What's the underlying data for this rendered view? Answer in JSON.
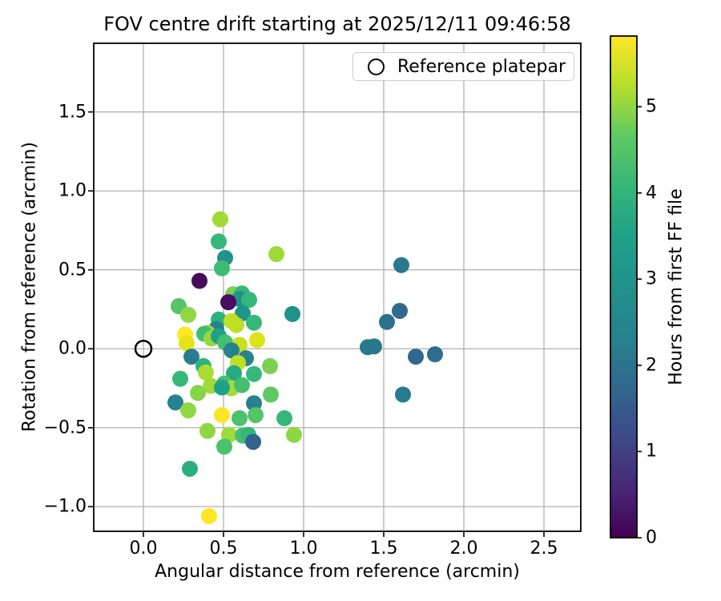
{
  "figure": {
    "background": "#ffffff",
    "grid_color": "#b0b0b0",
    "spine_color": "#000000",
    "text_color": "#000000"
  },
  "chart_data": {
    "type": "scatter",
    "title": "FOV centre drift starting at 2025/12/11 09:46:58",
    "xlabel": "Angular distance from reference (arcmin)",
    "ylabel": "Rotation from reference (arcmin)",
    "xlim": [
      -0.31,
      2.73
    ],
    "ylim": [
      -1.156,
      1.935
    ],
    "grid": true,
    "xticks": {
      "values": [
        0.0,
        0.5,
        1.0,
        1.5,
        2.0,
        2.5
      ],
      "labels": [
        "0.0",
        "0.5",
        "1.0",
        "1.5",
        "2.0",
        "2.5"
      ]
    },
    "yticks": {
      "values": [
        -1.0,
        -0.5,
        0.0,
        0.5,
        1.0,
        1.5
      ],
      "labels": [
        "−1.0",
        "−0.5",
        "0.0",
        "0.5",
        "1.0",
        "1.5"
      ]
    },
    "legend": {
      "position": "upper right",
      "entries": [
        {
          "label": "Reference platepar",
          "marker": "open-circle"
        }
      ]
    },
    "reference_point": {
      "x": 0.0,
      "y": 0.0,
      "marker": "open-circle",
      "edge_color": "#000000"
    },
    "colorbar": {
      "label": "Hours from first FF file",
      "vmin": 0,
      "vmax": 5.82,
      "ticks": {
        "values": [
          0,
          1,
          2,
          3,
          4,
          5
        ],
        "labels": [
          "0",
          "1",
          "2",
          "3",
          "4",
          "5"
        ]
      },
      "colormap": "viridis",
      "gradient_stops": [
        "#440154",
        "#482878",
        "#3e4989",
        "#31688e",
        "#26828e",
        "#21918c",
        "#1fa088",
        "#35b779",
        "#5ec962",
        "#b5de2b",
        "#fde725"
      ]
    },
    "points": [
      {
        "x": 0.48,
        "y": 0.82,
        "hours": 5.0,
        "color": "#a0da39"
      },
      {
        "x": 0.47,
        "y": 0.68,
        "hours": 4.0,
        "color": "#35b779"
      },
      {
        "x": 0.51,
        "y": 0.575,
        "hours": 3.0,
        "color": "#21918c"
      },
      {
        "x": 0.49,
        "y": 0.51,
        "hours": 4.1,
        "color": "#3dbc74"
      },
      {
        "x": 0.83,
        "y": 0.6,
        "hours": 5.0,
        "color": "#a0da39"
      },
      {
        "x": 0.35,
        "y": 0.43,
        "hours": 0.1,
        "color": "#450c59"
      },
      {
        "x": 0.56,
        "y": 0.345,
        "hours": 4.6,
        "color": "#77d153"
      },
      {
        "x": 0.615,
        "y": 0.35,
        "hours": 4.0,
        "color": "#35b779"
      },
      {
        "x": 0.6,
        "y": 0.315,
        "hours": 3.1,
        "color": "#21918c"
      },
      {
        "x": 0.66,
        "y": 0.31,
        "hours": 4.0,
        "color": "#35b779"
      },
      {
        "x": 0.53,
        "y": 0.295,
        "hours": 0.2,
        "color": "#470d60"
      },
      {
        "x": 0.22,
        "y": 0.27,
        "hours": 4.3,
        "color": "#54c568"
      },
      {
        "x": 0.28,
        "y": 0.215,
        "hours": 4.8,
        "color": "#90d743"
      },
      {
        "x": 0.62,
        "y": 0.225,
        "hours": 3.1,
        "color": "#1f958b"
      },
      {
        "x": 0.93,
        "y": 0.22,
        "hours": 3.1,
        "color": "#21918c"
      },
      {
        "x": 0.47,
        "y": 0.185,
        "hours": 3.8,
        "color": "#2db27d"
      },
      {
        "x": 0.55,
        "y": 0.175,
        "hours": 5.2,
        "color": "#c0df25"
      },
      {
        "x": 0.58,
        "y": 0.15,
        "hours": 5.1,
        "color": "#bddf26"
      },
      {
        "x": 0.69,
        "y": 0.165,
        "hours": 4.0,
        "color": "#35b779"
      },
      {
        "x": 0.455,
        "y": 0.125,
        "hours": 3.0,
        "color": "#26828e"
      },
      {
        "x": 0.4,
        "y": 0.1,
        "hours": 4.9,
        "color": "#98d83e"
      },
      {
        "x": 0.38,
        "y": 0.095,
        "hours": 4.1,
        "color": "#40bd72"
      },
      {
        "x": 0.425,
        "y": 0.065,
        "hours": 4.9,
        "color": "#98d83e"
      },
      {
        "x": 0.26,
        "y": 0.09,
        "hours": 5.8,
        "color": "#fde725"
      },
      {
        "x": 0.47,
        "y": 0.08,
        "hours": 3.4,
        "color": "#1fa187"
      },
      {
        "x": 0.27,
        "y": 0.035,
        "hours": 5.6,
        "color": "#e5e419"
      },
      {
        "x": 0.51,
        "y": 0.04,
        "hours": 4.2,
        "color": "#44bf70"
      },
      {
        "x": 0.6,
        "y": 0.025,
        "hours": 5.3,
        "color": "#c8e020"
      },
      {
        "x": 0.71,
        "y": 0.055,
        "hours": 5.5,
        "color": "#dde318"
      },
      {
        "x": 0.55,
        "y": -0.01,
        "hours": 2.9,
        "color": "#26828e"
      },
      {
        "x": 0.3,
        "y": -0.05,
        "hours": 2.8,
        "color": "#287d8e"
      },
      {
        "x": 0.64,
        "y": -0.06,
        "hours": 2.9,
        "color": "#26828e"
      },
      {
        "x": 0.59,
        "y": -0.09,
        "hours": 5.1,
        "color": "#bddf26"
      },
      {
        "x": 0.375,
        "y": -0.11,
        "hours": 3.8,
        "color": "#2db27d"
      },
      {
        "x": 0.79,
        "y": -0.11,
        "hours": 4.5,
        "color": "#7ad151"
      },
      {
        "x": 0.39,
        "y": -0.15,
        "hours": 5.0,
        "color": "#aadc32"
      },
      {
        "x": 0.23,
        "y": -0.19,
        "hours": 4.0,
        "color": "#35b779"
      },
      {
        "x": 0.565,
        "y": -0.155,
        "hours": 3.5,
        "color": "#25ab82"
      },
      {
        "x": 0.69,
        "y": -0.16,
        "hours": 4.0,
        "color": "#35b779"
      },
      {
        "x": 0.42,
        "y": -0.235,
        "hours": 4.9,
        "color": "#a0da39"
      },
      {
        "x": 0.34,
        "y": -0.28,
        "hours": 4.6,
        "color": "#86d549"
      },
      {
        "x": 0.505,
        "y": -0.22,
        "hours": 4.2,
        "color": "#4ac16d"
      },
      {
        "x": 0.55,
        "y": -0.25,
        "hours": 5.0,
        "color": "#a5db36"
      },
      {
        "x": 0.615,
        "y": -0.23,
        "hours": 4.1,
        "color": "#44bf70"
      },
      {
        "x": 0.49,
        "y": -0.245,
        "hours": 3.4,
        "color": "#1fa287"
      },
      {
        "x": 0.795,
        "y": -0.29,
        "hours": 4.4,
        "color": "#5ec962"
      },
      {
        "x": 0.69,
        "y": -0.345,
        "hours": 2.9,
        "color": "#26828e"
      },
      {
        "x": 0.2,
        "y": -0.34,
        "hours": 2.9,
        "color": "#26828e"
      },
      {
        "x": 0.28,
        "y": -0.39,
        "hours": 4.8,
        "color": "#90d743"
      },
      {
        "x": 0.49,
        "y": -0.42,
        "hours": 5.8,
        "color": "#fde725"
      },
      {
        "x": 0.6,
        "y": -0.44,
        "hours": 4.2,
        "color": "#4ac16d"
      },
      {
        "x": 0.7,
        "y": -0.42,
        "hours": 4.3,
        "color": "#54c568"
      },
      {
        "x": 0.88,
        "y": -0.44,
        "hours": 4.0,
        "color": "#35b779"
      },
      {
        "x": 0.4,
        "y": -0.52,
        "hours": 4.7,
        "color": "#8ed645"
      },
      {
        "x": 0.535,
        "y": -0.545,
        "hours": 4.9,
        "color": "#a0da39"
      },
      {
        "x": 0.62,
        "y": -0.55,
        "hours": 4.1,
        "color": "#44bf70"
      },
      {
        "x": 0.655,
        "y": -0.545,
        "hours": 4.0,
        "color": "#35b779"
      },
      {
        "x": 0.685,
        "y": -0.59,
        "hours": 1.7,
        "color": "#33638d"
      },
      {
        "x": 0.94,
        "y": -0.545,
        "hours": 4.7,
        "color": "#8ed645"
      },
      {
        "x": 0.505,
        "y": -0.62,
        "hours": 4.2,
        "color": "#4ac16d"
      },
      {
        "x": 0.29,
        "y": -0.76,
        "hours": 3.7,
        "color": "#2ab07f"
      },
      {
        "x": 0.41,
        "y": -1.06,
        "hours": 5.8,
        "color": "#fde725"
      },
      {
        "x": 1.61,
        "y": 0.53,
        "hours": 2.4,
        "color": "#2a788e"
      },
      {
        "x": 1.6,
        "y": 0.24,
        "hours": 2.0,
        "color": "#31688e"
      },
      {
        "x": 1.52,
        "y": 0.17,
        "hours": 2.3,
        "color": "#2c728e"
      },
      {
        "x": 1.4,
        "y": 0.01,
        "hours": 2.7,
        "color": "#29798e"
      },
      {
        "x": 1.44,
        "y": 0.015,
        "hours": 2.7,
        "color": "#29798e"
      },
      {
        "x": 1.7,
        "y": -0.05,
        "hours": 2.0,
        "color": "#31688e"
      },
      {
        "x": 1.82,
        "y": -0.035,
        "hours": 2.1,
        "color": "#2f6c8e"
      },
      {
        "x": 1.62,
        "y": -0.29,
        "hours": 2.8,
        "color": "#287a8e"
      }
    ]
  }
}
